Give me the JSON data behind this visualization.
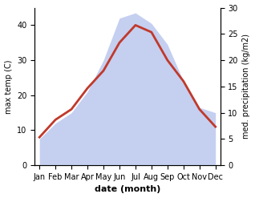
{
  "months": [
    "Jan",
    "Feb",
    "Mar",
    "Apr",
    "May",
    "Jun",
    "Jul",
    "Aug",
    "Sep",
    "Oct",
    "Nov",
    "Dec"
  ],
  "max_temp": [
    8,
    13,
    16,
    22,
    27,
    35,
    40,
    38,
    30,
    24,
    16,
    11
  ],
  "precipitation": [
    5,
    8,
    10,
    14,
    20,
    28,
    29,
    27,
    23,
    16,
    11,
    10
  ],
  "temp_color": "#c0392b",
  "precip_fill_color": "#c5cff0",
  "temp_ylim": [
    0,
    45
  ],
  "precip_ylim": [
    0,
    30
  ],
  "temp_yticks": [
    0,
    10,
    20,
    30,
    40
  ],
  "precip_yticks": [
    0,
    5,
    10,
    15,
    20,
    25,
    30
  ],
  "xlabel": "date (month)",
  "ylabel_left": "max temp (C)",
  "ylabel_right": "med. precipitation (kg/m2)",
  "temp_linewidth": 2.0,
  "bg_color": "#ffffff",
  "label_fontsize": 7,
  "xlabel_fontsize": 8
}
